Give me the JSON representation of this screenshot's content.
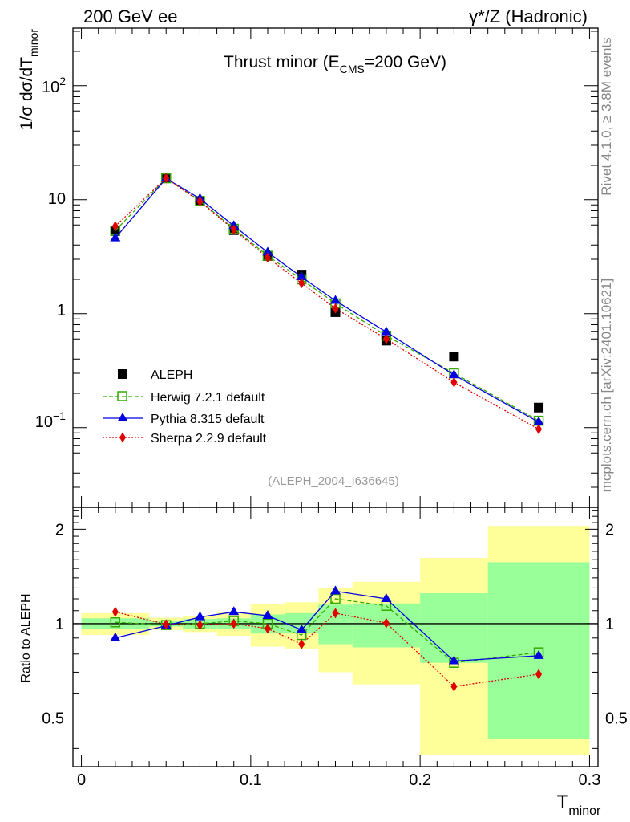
{
  "header": {
    "left": "200 GeV ee",
    "right": "γ*/Z (Hadronic)"
  },
  "side_labels": {
    "rivet": "Rivet 4.1.0, ≥ 3.8M events",
    "mcplots": "mcplots.cern.ch [arXiv:2401.10621]"
  },
  "chart_data": [
    {
      "type": "scatter",
      "panel": "main",
      "title": "Thrust minor (E_CMS=200 GeV)",
      "title_parts": {
        "a": "Thrust minor (E",
        "sub": "CMS",
        "b": "=200 GeV)"
      },
      "ylabel": "1/σ  dσ/dT_minor",
      "ylabel_parts": {
        "a": "1/σ  dσ/dT",
        "sub": "minor"
      },
      "yscale": "log",
      "ylim": [
        0.02,
        320
      ],
      "xlim": [
        -0.005,
        0.305
      ],
      "ytick_labels": [
        {
          "value": 0.1,
          "base": "10",
          "exp": "−1"
        },
        {
          "value": 1,
          "text": "1"
        },
        {
          "value": 10,
          "text": "10"
        },
        {
          "value": 100,
          "base": "10",
          "exp": "2"
        }
      ],
      "analysis_label": "(ALEPH_2004_I636645)",
      "legend_position": "middle-left",
      "x": [
        0.02,
        0.05,
        0.07,
        0.09,
        0.11,
        0.13,
        0.15,
        0.18,
        0.22,
        0.27
      ],
      "series": [
        {
          "name": "ALEPH",
          "color": "#000000",
          "marker": "square-filled",
          "line": "none",
          "values": [
            5.3,
            15.5,
            9.7,
            5.4,
            3.2,
            2.2,
            1.03,
            0.58,
            0.42,
            0.15
          ]
        },
        {
          "name": "Herwig 7.2.1 default",
          "color": "#33aa00",
          "marker": "square-open",
          "line": "dashed",
          "values": [
            5.35,
            15.4,
            9.75,
            5.55,
            3.22,
            2.0,
            1.23,
            0.64,
            0.3,
            0.115
          ]
        },
        {
          "name": "Pythia 8.315 default",
          "color": "#0000e0",
          "marker": "triangle",
          "line": "solid",
          "values": [
            4.6,
            15.35,
            10.2,
            5.9,
            3.45,
            2.1,
            1.3,
            0.69,
            0.29,
            0.112
          ]
        },
        {
          "name": "Sherpa 2.2.9 default",
          "color": "#e00000",
          "marker": "diamond",
          "line": "dotted",
          "values": [
            5.85,
            15.45,
            9.65,
            5.45,
            3.1,
            1.85,
            1.11,
            0.6,
            0.25,
            0.097
          ]
        }
      ]
    },
    {
      "type": "scatter",
      "panel": "ratio",
      "ylabel": "Ratio to ALEPH",
      "xlabel": "T_minor",
      "xlabel_parts": {
        "a": "T",
        "sub": "minor"
      },
      "yscale": "log",
      "ylim": [
        0.35,
        2.35
      ],
      "xlim": [
        -0.005,
        0.305
      ],
      "xticks": [
        0,
        0.1,
        0.2,
        0.3
      ],
      "xtick_labels": [
        "0",
        "0.1",
        "0.2",
        "0.3"
      ],
      "yticks": [
        0.5,
        1,
        2
      ],
      "ytick_labels": [
        "0.5",
        "1",
        "2"
      ],
      "bins": [
        0,
        0.04,
        0.06,
        0.08,
        0.1,
        0.12,
        0.14,
        0.16,
        0.2,
        0.24,
        0.3
      ],
      "band_stat": {
        "color": "#99ff99",
        "lower": [
          0.96,
          0.98,
          0.965,
          0.96,
          0.93,
          0.93,
          0.86,
          0.84,
          0.75,
          0.43
        ],
        "upper": [
          1.04,
          1.02,
          1.035,
          1.04,
          1.07,
          1.08,
          1.15,
          1.16,
          1.25,
          1.57
        ]
      },
      "band_total": {
        "color": "#ffff99",
        "lower": [
          0.92,
          0.955,
          0.94,
          0.915,
          0.845,
          0.83,
          0.7,
          0.64,
          0.38,
          0.38
        ],
        "upper": [
          1.08,
          1.045,
          1.06,
          1.085,
          1.155,
          1.17,
          1.3,
          1.36,
          1.62,
          2.05
        ]
      },
      "x": [
        0.02,
        0.05,
        0.07,
        0.09,
        0.11,
        0.13,
        0.15,
        0.18,
        0.22,
        0.27
      ],
      "series": [
        {
          "name": "Herwig 7.2.1 default",
          "color": "#33aa00",
          "marker": "square-open",
          "line": "dashed",
          "values": [
            1.01,
            0.99,
            1.0,
            1.02,
            1.0,
            0.92,
            1.2,
            1.14,
            0.75,
            0.81
          ]
        },
        {
          "name": "Pythia 8.315 default",
          "color": "#0000e0",
          "marker": "triangle",
          "line": "solid",
          "values": [
            0.9,
            0.985,
            1.05,
            1.09,
            1.06,
            0.955,
            1.27,
            1.2,
            0.76,
            0.79
          ]
        },
        {
          "name": "Sherpa 2.2.9 default",
          "color": "#e00000",
          "marker": "diamond",
          "line": "dotted",
          "values": [
            1.09,
            0.995,
            0.99,
            1.0,
            0.965,
            0.86,
            1.08,
            1.005,
            0.63,
            0.69
          ]
        }
      ]
    }
  ]
}
